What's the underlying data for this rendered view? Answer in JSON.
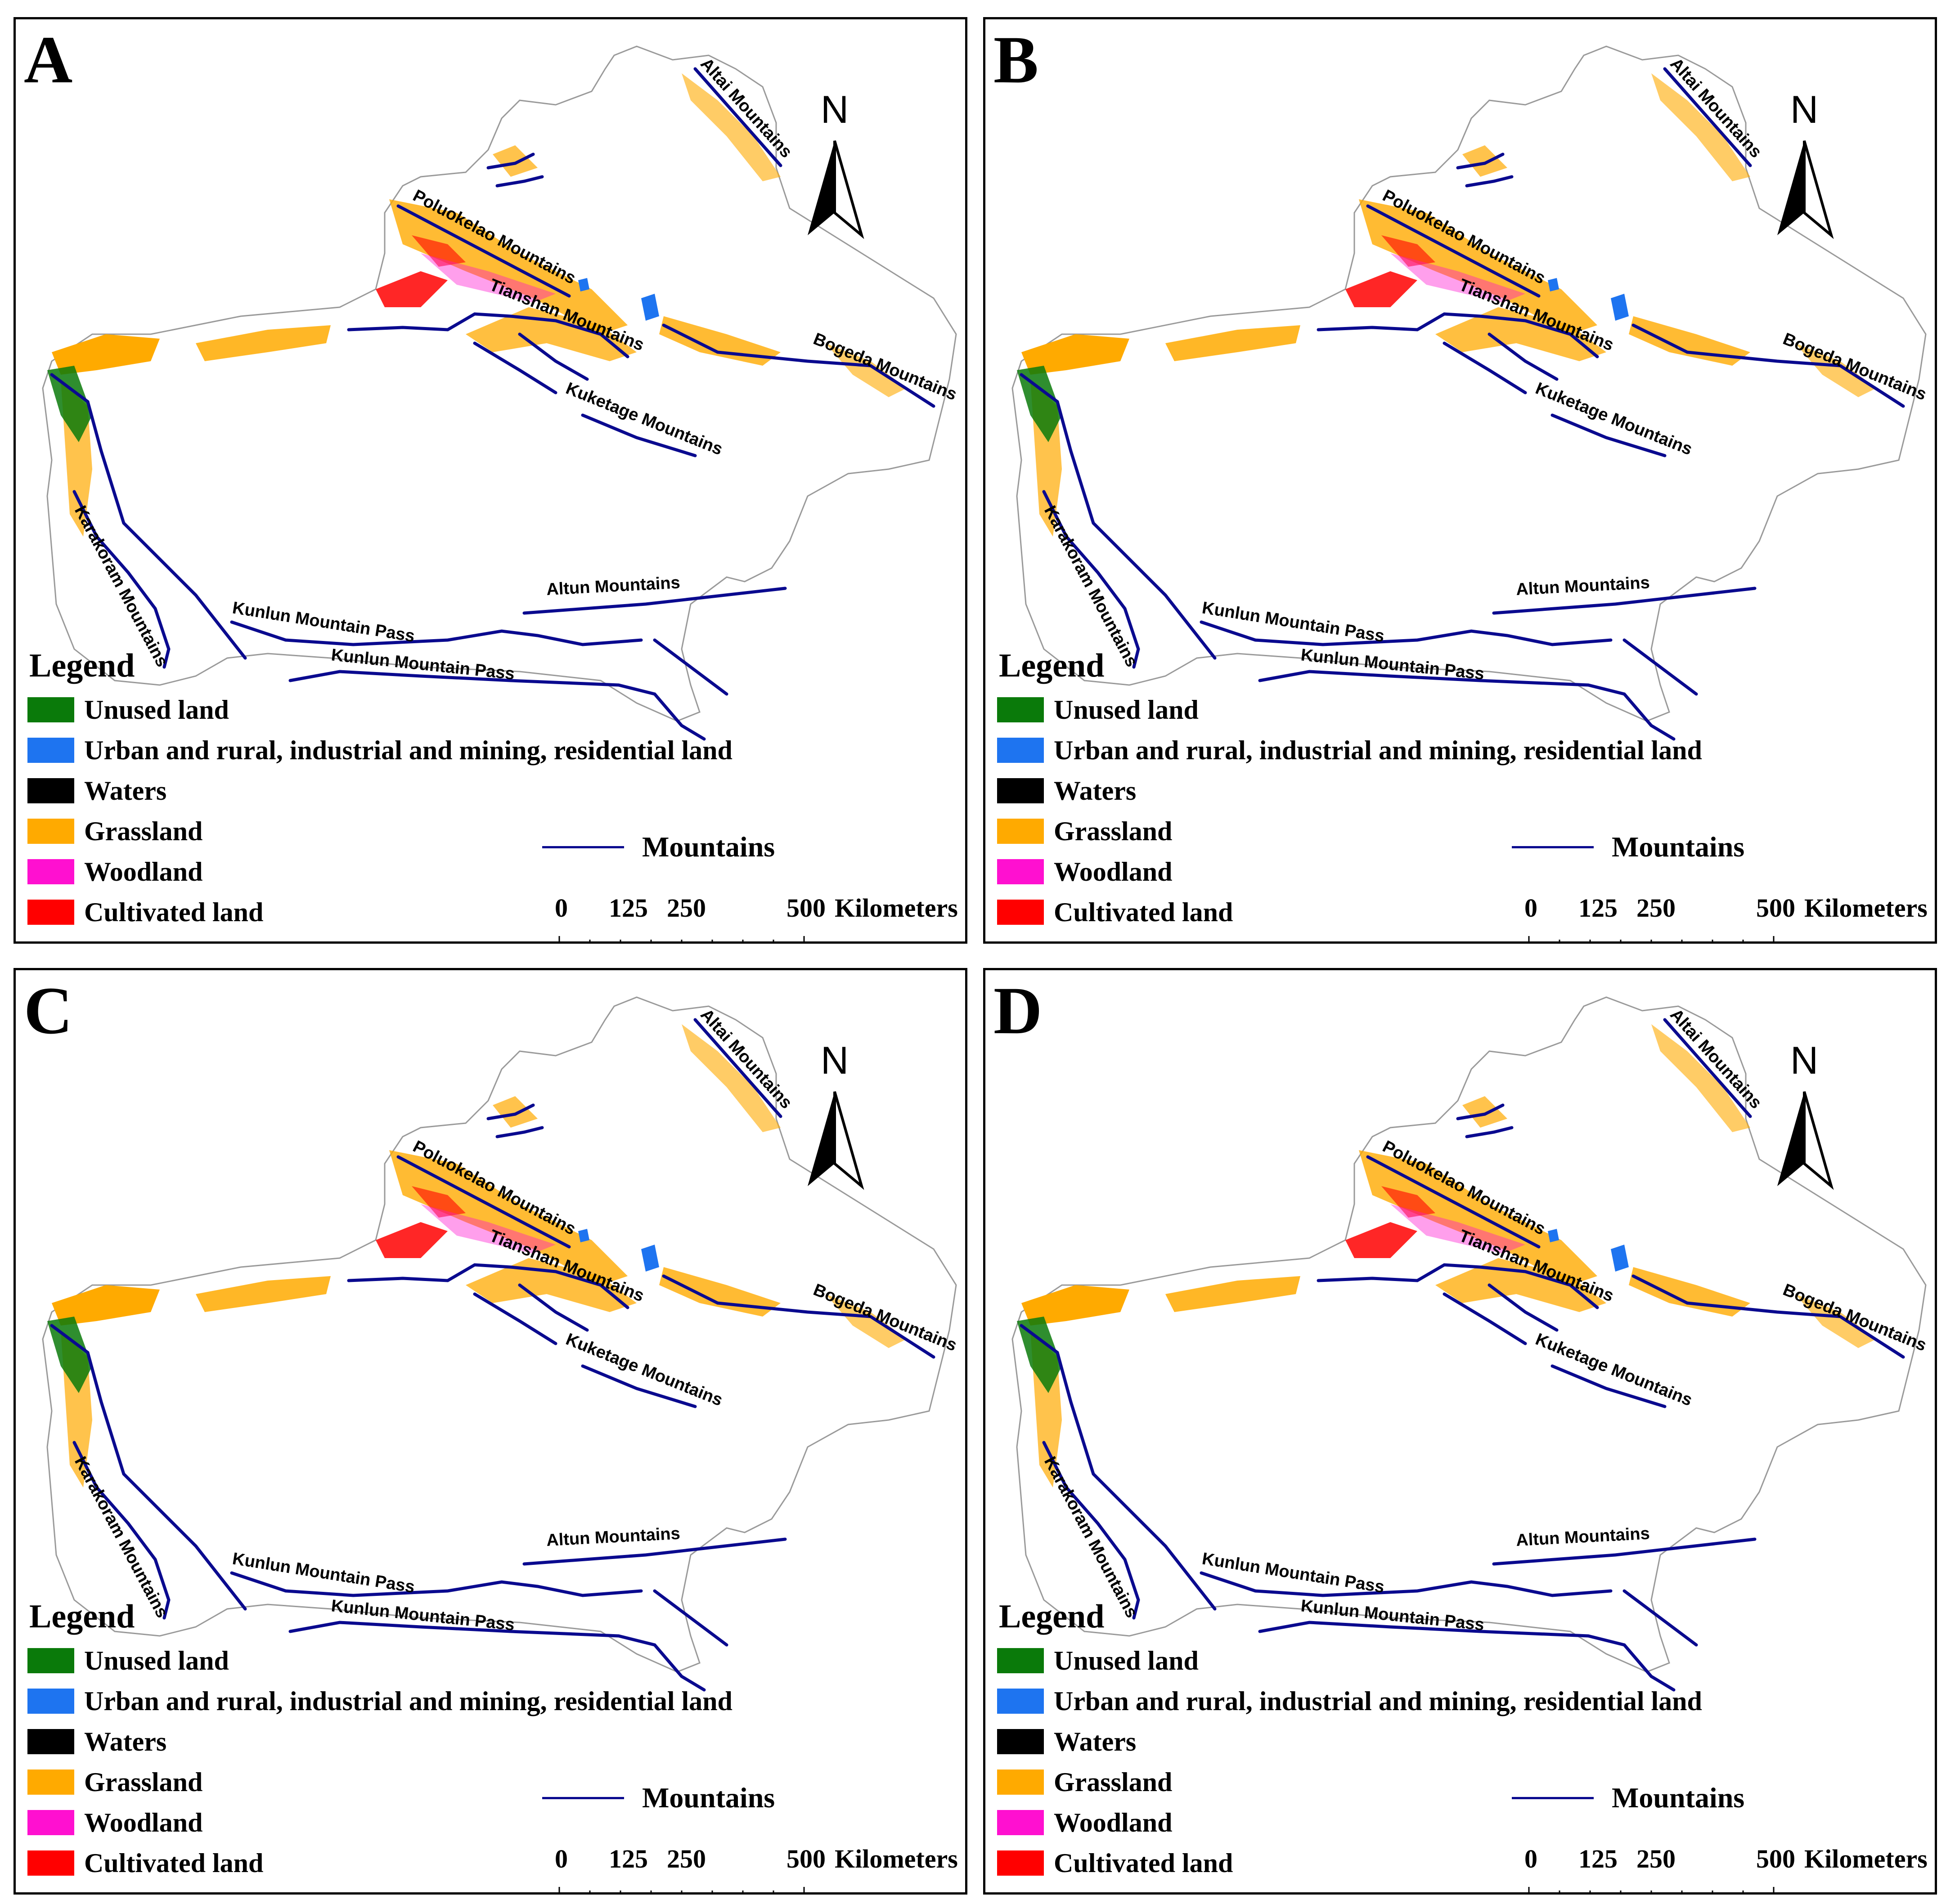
{
  "figure": {
    "panels": [
      {
        "letter": "A"
      },
      {
        "letter": "B"
      },
      {
        "letter": "C"
      },
      {
        "letter": "D"
      }
    ],
    "legend": {
      "title": "Legend",
      "items": [
        {
          "label": "Unused land",
          "color": "#0a7a0a"
        },
        {
          "label": "Urban and rural, industrial and mining, residential land",
          "color": "#1e74f0"
        },
        {
          "label": "Waters",
          "color": "#000000"
        },
        {
          "label": "Grassland",
          "color": "#ffaa00"
        },
        {
          "label": "Woodland",
          "color": "#ff10d0"
        },
        {
          "label": "Cultivated land",
          "color": "#ff0000"
        }
      ],
      "mountains_label": "Mountains",
      "mountains_color": "#0a0a8f"
    },
    "scale_bar": {
      "ticks": [
        "0",
        "125",
        "250",
        "500"
      ],
      "unit": "Kilometers"
    },
    "north_arrow": {
      "label": "N",
      "icon": "north-arrow-icon"
    },
    "mountain_labels": {
      "altai": "Altai Mountains",
      "poluokelao": "Poluokelao Mountains",
      "tianshan": "Tianshan Mountains",
      "bogeda": "Bogeda Mountains",
      "kuketage": "Kuketage Mountains",
      "karakoram": "Karakoram Mountains",
      "altun": "Altun Mountains",
      "kunlun1": "Kunlun Mountain Pass",
      "kunlun2": "Kunlun Mountain Pass"
    }
  }
}
